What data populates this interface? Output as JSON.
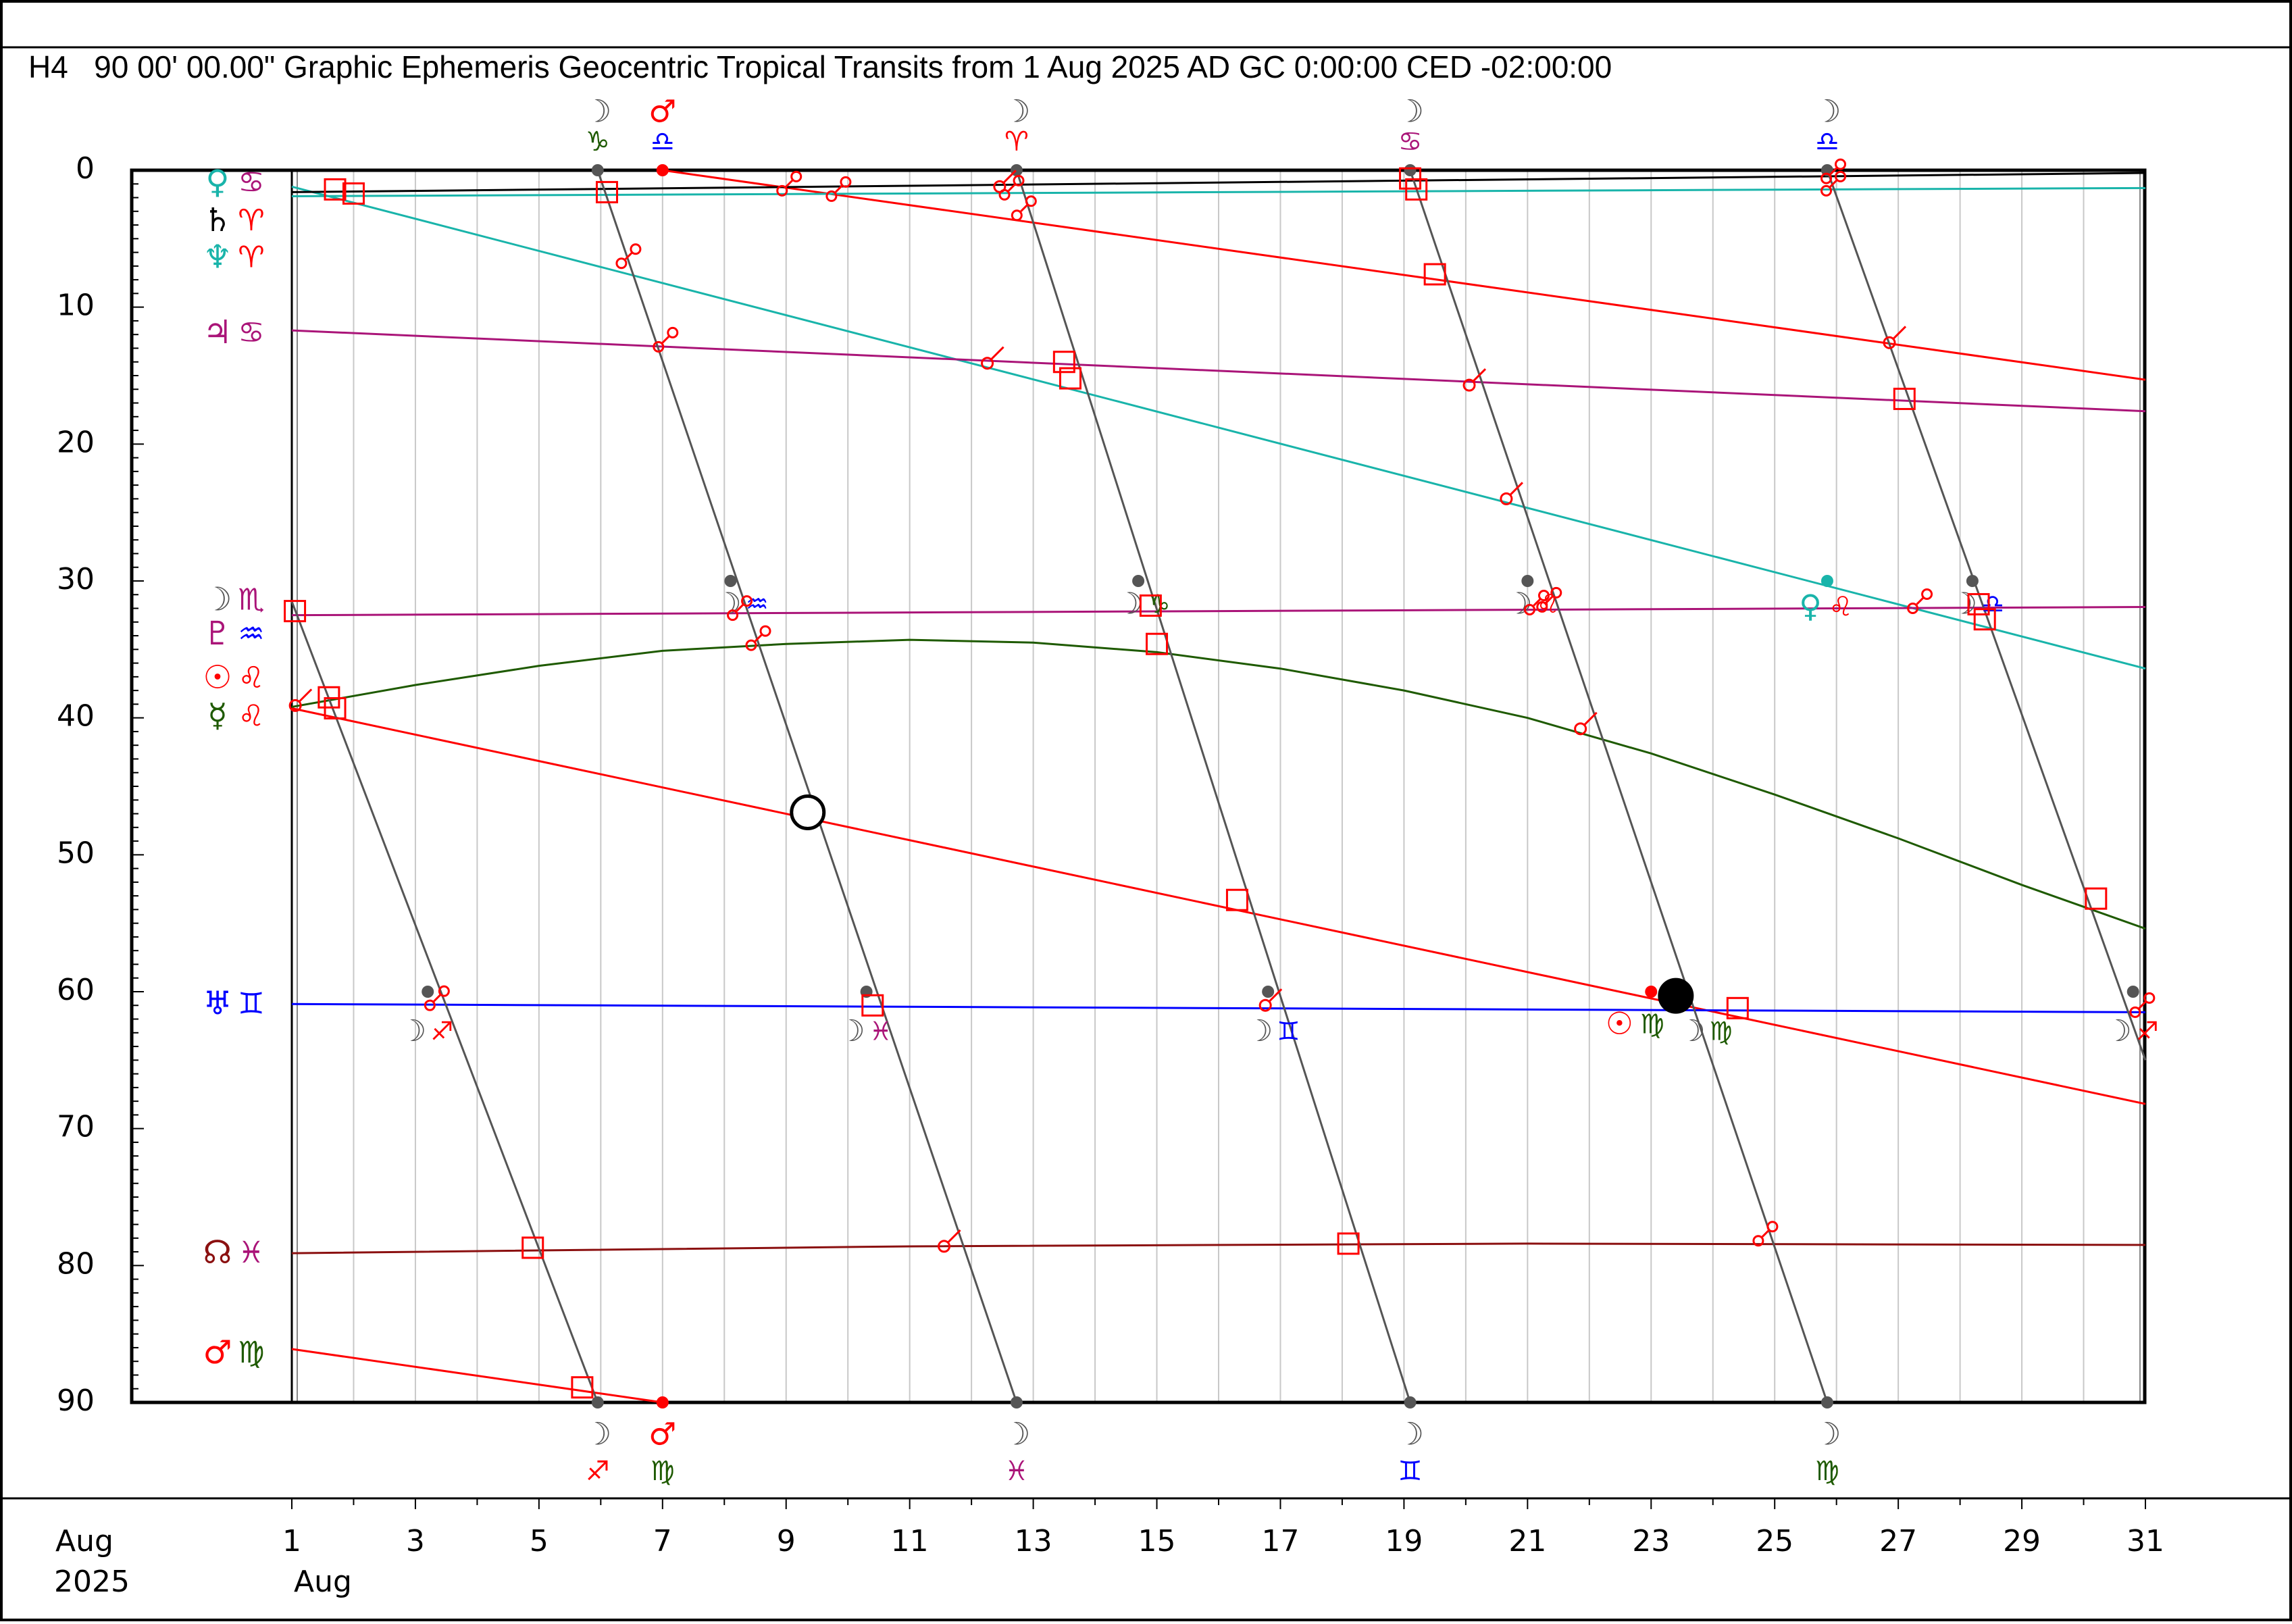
{
  "title": "H4   90 00' 00.00\" Graphic Ephemeris Geocentric Tropical Transits from 1 Aug 2025 AD GC 0:00:00 CED -02:00:00",
  "chart_data": {
    "type": "line",
    "title": "H4   90 00' 00.00\" Graphic Ephemeris Geocentric Tropical Transits from 1 Aug 2025 AD GC 0:00:00 CED -02:00:00",
    "xlabel": "",
    "ylabel": "",
    "x_range_days": [
      1,
      31
    ],
    "ylim": [
      0,
      90
    ],
    "y_inverted": true,
    "y_ticks": [
      "0",
      "10",
      "20",
      "30",
      "40",
      "50",
      "60",
      "70",
      "80",
      "90"
    ],
    "x_ticks": [
      {
        "day": 1,
        "label": "1"
      },
      {
        "day": 3,
        "label": "3"
      },
      {
        "day": 5,
        "label": "5"
      },
      {
        "day": 7,
        "label": "7"
      },
      {
        "day": 9,
        "label": "9"
      },
      {
        "day": 11,
        "label": "11"
      },
      {
        "day": 13,
        "label": "13"
      },
      {
        "day": 15,
        "label": "15"
      },
      {
        "day": 17,
        "label": "17"
      },
      {
        "day": 19,
        "label": "19"
      },
      {
        "day": 21,
        "label": "21"
      },
      {
        "day": 23,
        "label": "23"
      },
      {
        "day": 25,
        "label": "25"
      },
      {
        "day": 27,
        "label": "27"
      },
      {
        "day": 29,
        "label": "29"
      },
      {
        "day": 31,
        "label": "31"
      }
    ],
    "x_axis_left_labels": {
      "month": "Aug",
      "year": "2025",
      "start_month": "Aug"
    },
    "grid": true,
    "series": [
      {
        "name": "Sun",
        "glyph": "☉",
        "sign": "♌",
        "color": "#ff0000",
        "sign_color": "#ff0000",
        "points": [
          [
            1,
            39.3
          ],
          [
            31,
            68.2
          ]
        ]
      },
      {
        "name": "Mercury",
        "glyph": "☿",
        "sign": "♌",
        "color": "#1e5a00",
        "sign_color": "#ff0000",
        "points": [
          [
            1,
            39.2
          ],
          [
            3,
            37.6
          ],
          [
            5,
            36.2
          ],
          [
            7,
            35.1
          ],
          [
            9,
            34.6
          ],
          [
            11,
            34.3
          ],
          [
            13,
            34.5
          ],
          [
            15,
            35.2
          ],
          [
            17,
            36.4
          ],
          [
            19,
            38.0
          ],
          [
            21,
            40.0
          ],
          [
            23,
            42.6
          ],
          [
            25,
            45.6
          ],
          [
            27,
            48.8
          ],
          [
            29,
            52.2
          ],
          [
            31,
            55.4
          ]
        ]
      },
      {
        "name": "Venus",
        "glyph": "♀",
        "sign": "♋",
        "color": "#19b4aa",
        "sign_color": "#aa1478",
        "points": [
          [
            1,
            1.2
          ],
          [
            31,
            36.4
          ]
        ]
      },
      {
        "name": "Mars",
        "glyph": "♂",
        "sign": "♍",
        "color": "#ff0000",
        "sign_color": "#1e5a00",
        "points": [
          [
            1,
            86.1
          ],
          [
            7,
            90.0
          ]
        ]
      },
      {
        "name": "Mars (Libra)",
        "glyph": "♂",
        "sign": "♎",
        "color": "#ff0000",
        "sign_color": "#0000ff",
        "points": [
          [
            7,
            0.0
          ],
          [
            31,
            15.3
          ]
        ]
      },
      {
        "name": "Jupiter",
        "glyph": "♃",
        "sign": "♋",
        "color": "#aa1478",
        "sign_color": "#aa1478",
        "points": [
          [
            1,
            11.7
          ],
          [
            31,
            17.6
          ]
        ]
      },
      {
        "name": "Saturn",
        "glyph": "♄",
        "sign": "♈",
        "color": "#000000",
        "sign_color": "#ff0000",
        "points": [
          [
            1,
            1.6
          ],
          [
            31,
            0.2
          ]
        ]
      },
      {
        "name": "Uranus",
        "glyph": "♅",
        "sign": "♊",
        "color": "#0000ff",
        "sign_color": "#0000ff",
        "points": [
          [
            1,
            60.9
          ],
          [
            31,
            61.5
          ]
        ]
      },
      {
        "name": "Neptune",
        "glyph": "♆",
        "sign": "♈",
        "color": "#19b4aa",
        "sign_color": "#ff0000",
        "points": [
          [
            1,
            1.9
          ],
          [
            31,
            1.3
          ]
        ]
      },
      {
        "name": "Pluto",
        "glyph": "♇",
        "sign": "♒",
        "color": "#aa1478",
        "sign_color": "#0000ff",
        "points": [
          [
            1,
            32.5
          ],
          [
            31,
            31.9
          ]
        ]
      },
      {
        "name": "Node",
        "glyph": "☊",
        "sign": "♓",
        "color": "#8b1010",
        "sign_color": "#aa1478",
        "points": [
          [
            1,
            79.1
          ],
          [
            11,
            78.6
          ],
          [
            21,
            78.4
          ],
          [
            31,
            78.5
          ]
        ]
      },
      {
        "name": "Moon",
        "glyph": "☽",
        "sign": "♏",
        "color": "#555555",
        "sign_color": "#aa1478",
        "segments": [
          [
            [
              1,
              31.5
            ],
            [
              5.95,
              90
            ]
          ],
          [
            [
              5.95,
              0
            ],
            [
              12.73,
              90
            ]
          ],
          [
            [
              12.73,
              0
            ],
            [
              19.1,
              90
            ]
          ],
          [
            [
              19.1,
              0
            ],
            [
              25.85,
              90
            ]
          ],
          [
            [
              25.85,
              0
            ],
            [
              31,
              65
            ]
          ]
        ]
      }
    ],
    "left_labels": [
      {
        "glyph": "♀",
        "glyph_color": "#19b4aa",
        "sign": "♋",
        "sign_color": "#aa1478",
        "y": 1.0
      },
      {
        "glyph": "♄",
        "glyph_color": "#000000",
        "sign": "♈",
        "sign_color": "#ff0000",
        "y": 3.8
      },
      {
        "glyph": "♆",
        "glyph_color": "#19b4aa",
        "sign": "♈",
        "sign_color": "#ff0000",
        "y": 6.5
      },
      {
        "glyph": "♃",
        "glyph_color": "#aa1478",
        "sign": "♋",
        "sign_color": "#aa1478",
        "y": 12.0
      },
      {
        "glyph": "☽",
        "glyph_color": "#555555",
        "sign": "♏",
        "sign_color": "#aa1478",
        "y": 31.5
      },
      {
        "glyph": "♇",
        "glyph_color": "#aa1478",
        "sign": "♒",
        "sign_color": "#0000ff",
        "y": 34.0
      },
      {
        "glyph": "☉",
        "glyph_color": "#ff0000",
        "sign": "♌",
        "sign_color": "#ff0000",
        "y": 37.2
      },
      {
        "glyph": "☿",
        "glyph_color": "#1e5a00",
        "sign": "♌",
        "sign_color": "#ff0000",
        "y": 40.0
      },
      {
        "glyph": "♅",
        "glyph_color": "#0000ff",
        "sign": "♊",
        "sign_color": "#0000ff",
        "y": 61.0
      },
      {
        "glyph": "☊",
        "glyph_color": "#8b1010",
        "sign": "♓",
        "sign_color": "#aa1478",
        "y": 79.2
      },
      {
        "glyph": "♂",
        "glyph_color": "#ff0000",
        "sign": "♍",
        "sign_color": "#1e5a00",
        "y": 86.5
      }
    ],
    "top_ingress_labels": [
      {
        "day": 5.95,
        "glyph": "☽",
        "sign": "♑",
        "sign_color": "#1e5a00"
      },
      {
        "day": 7.0,
        "glyph": "♂",
        "glyph_color": "#ff0000",
        "sign": "♎",
        "sign_color": "#0000ff"
      },
      {
        "day": 12.73,
        "glyph": "☽",
        "sign": "♈",
        "sign_color": "#ff0000"
      },
      {
        "day": 19.1,
        "glyph": "☽",
        "sign": "♋",
        "sign_color": "#aa1478"
      },
      {
        "day": 25.85,
        "glyph": "☽",
        "sign": "♎",
        "sign_color": "#0000ff"
      }
    ],
    "bottom_ingress_labels": [
      {
        "day": 5.95,
        "glyph": "☽",
        "sign": "♐",
        "sign_color": "#ff0000"
      },
      {
        "day": 7.0,
        "glyph": "♂",
        "glyph_color": "#ff0000",
        "sign": "♍",
        "sign_color": "#1e5a00"
      },
      {
        "day": 12.73,
        "glyph": "☽",
        "sign": "♓",
        "sign_color": "#aa1478"
      },
      {
        "day": 19.1,
        "glyph": "☽",
        "sign": "♊",
        "sign_color": "#0000ff"
      },
      {
        "day": 25.85,
        "glyph": "☽",
        "sign": "♍",
        "sign_color": "#1e5a00"
      }
    ],
    "moon_crossing_labels": [
      {
        "day": 3.2,
        "y": 63.0,
        "sign": "♐",
        "sign_color": "#ff0000"
      },
      {
        "day": 8.3,
        "y": 31.8,
        "sign": "♒",
        "sign_color": "#0000ff"
      },
      {
        "day": 10.3,
        "y": 63.0,
        "sign": "♓",
        "sign_color": "#aa1478"
      },
      {
        "day": 14.8,
        "y": 31.8,
        "sign": "♑",
        "sign_color": "#1e5a00"
      },
      {
        "day": 16.9,
        "y": 63.0,
        "sign": "♊",
        "sign_color": "#0000ff"
      },
      {
        "day": 21.1,
        "y": 31.8,
        "sign": "♌",
        "sign_color": "#ff0000"
      },
      {
        "day": 23.9,
        "y": 63.0,
        "sign": "♍",
        "sign_color": "#1e5a00"
      },
      {
        "day": 28.3,
        "y": 31.8,
        "sign": "♎",
        "sign_color": "#0000ff"
      },
      {
        "day": 30.8,
        "y": 63.0,
        "sign": "♐",
        "sign_color": "#ff0000"
      }
    ],
    "sun_ingress_label": {
      "day": 22.8,
      "y": 62.5,
      "glyph": "☉",
      "sign": "♍",
      "glyph_color": "#ff0000",
      "sign_color": "#1e5a00"
    },
    "venus_ingress_label": {
      "day": 25.85,
      "y": 32.0,
      "glyph": "♀",
      "sign": "♌",
      "glyph_color": "#19b4aa",
      "sign_color": "#ff0000"
    },
    "aspect_markers": {
      "square": [
        {
          "day": 1.7,
          "y": 1.4
        },
        {
          "day": 2.0,
          "y": 1.7
        },
        {
          "day": 6.1,
          "y": 1.6
        },
        {
          "day": 19.1,
          "y": 0.6
        },
        {
          "day": 19.2,
          "y": 1.4
        },
        {
          "day": 19.5,
          "y": 7.6
        },
        {
          "day": 13.5,
          "y": 14.0
        },
        {
          "day": 13.6,
          "y": 15.2
        },
        {
          "day": 27.1,
          "y": 16.7
        },
        {
          "day": 1.05,
          "y": 32.2
        },
        {
          "day": 15.0,
          "y": 34.6
        },
        {
          "day": 28.3,
          "y": 31.7
        },
        {
          "day": 28.4,
          "y": 32.8
        },
        {
          "day": 1.6,
          "y": 38.5
        },
        {
          "day": 1.7,
          "y": 39.3
        },
        {
          "day": 16.3,
          "y": 53.3
        },
        {
          "day": 30.2,
          "y": 53.2
        },
        {
          "day": 10.4,
          "y": 61.0
        },
        {
          "day": 24.4,
          "y": 61.2
        },
        {
          "day": 4.9,
          "y": 78.7
        },
        {
          "day": 18.1,
          "y": 78.4
        },
        {
          "day": 5.7,
          "y": 88.9
        },
        {
          "day": 14.9,
          "y": 31.8
        }
      ],
      "opposition": [
        {
          "day": 9.0,
          "y": 1.2
        },
        {
          "day": 9.8,
          "y": 1.6
        },
        {
          "day": 6.4,
          "y": 6.5
        },
        {
          "day": 7.0,
          "y": 12.6
        },
        {
          "day": 12.8,
          "y": 3.0
        },
        {
          "day": 12.6,
          "y": 1.5
        },
        {
          "day": 8.2,
          "y": 32.2
        },
        {
          "day": 8.5,
          "y": 34.4
        },
        {
          "day": 21.1,
          "y": 31.8
        },
        {
          "day": 21.3,
          "y": 31.6
        },
        {
          "day": 27.3,
          "y": 31.7
        },
        {
          "day": 25.9,
          "y": 0.3
        },
        {
          "day": 25.9,
          "y": 1.2
        },
        {
          "day": 3.3,
          "y": 60.7
        },
        {
          "day": 24.8,
          "y": 77.9
        },
        {
          "day": 30.9,
          "y": 61.2
        }
      ],
      "sextile": [
        {
          "day": 12.5,
          "y": 1.0
        },
        {
          "day": 12.3,
          "y": 13.9
        },
        {
          "day": 20.1,
          "y": 15.5
        },
        {
          "day": 20.7,
          "y": 23.8
        },
        {
          "day": 26.9,
          "y": 12.4
        },
        {
          "day": 21.9,
          "y": 40.6
        },
        {
          "day": 1.1,
          "y": 38.9
        },
        {
          "day": 16.8,
          "y": 60.8
        },
        {
          "day": 11.6,
          "y": 78.4
        }
      ]
    },
    "events": [
      {
        "type": "full_moon",
        "day": 9.35,
        "y": 46.9,
        "fill": "#ffffff"
      },
      {
        "type": "new_moon",
        "day": 23.4,
        "y": 60.3,
        "fill": "#000000"
      }
    ],
    "dots": [
      {
        "day": 5.95,
        "y": 0.0,
        "color": "#555555"
      },
      {
        "day": 12.73,
        "y": 0.0,
        "color": "#555555"
      },
      {
        "day": 19.1,
        "y": 0.0,
        "color": "#555555"
      },
      {
        "day": 25.85,
        "y": 0.0,
        "color": "#555555"
      },
      {
        "day": 7.0,
        "y": 0.0,
        "color": "#ff0000"
      },
      {
        "day": 7.0,
        "y": 90.0,
        "color": "#ff0000"
      },
      {
        "day": 5.95,
        "y": 90.0,
        "color": "#555555"
      },
      {
        "day": 12.73,
        "y": 90.0,
        "color": "#555555"
      },
      {
        "day": 19.1,
        "y": 90.0,
        "color": "#555555"
      },
      {
        "day": 25.85,
        "y": 90.0,
        "color": "#555555"
      },
      {
        "day": 3.2,
        "y": 60.0,
        "color": "#555555"
      },
      {
        "day": 10.3,
        "y": 60.0,
        "color": "#555555"
      },
      {
        "day": 16.8,
        "y": 60.0,
        "color": "#555555"
      },
      {
        "day": 8.1,
        "y": 30.0,
        "color": "#555555"
      },
      {
        "day": 14.7,
        "y": 30.0,
        "color": "#555555"
      },
      {
        "day": 21.0,
        "y": 30.0,
        "color": "#555555"
      },
      {
        "day": 28.2,
        "y": 30.0,
        "color": "#555555"
      },
      {
        "day": 30.8,
        "y": 60.0,
        "color": "#555555"
      },
      {
        "day": 23.0,
        "y": 60.0,
        "color": "#ff0000"
      },
      {
        "day": 25.85,
        "y": 30.0,
        "color": "#19b4aa"
      }
    ]
  }
}
